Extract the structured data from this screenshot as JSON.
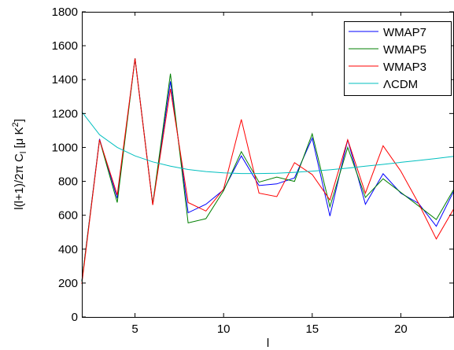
{
  "chart_data": {
    "type": "line",
    "title": "",
    "xlabel": "l",
    "ylabel": "l(l+1)/2π C_l [μ K²]",
    "ylabel_parts": {
      "main": "l(l+1)/2π C",
      "sub": "l",
      "units": " [μ K",
      "sup": "2",
      "close": "]"
    },
    "xlim": [
      2,
      23
    ],
    "ylim": [
      0,
      1800
    ],
    "xticks": [
      5,
      10,
      15,
      20
    ],
    "yticks": [
      0,
      200,
      400,
      600,
      800,
      1000,
      1200,
      1400,
      1600,
      1800
    ],
    "grid": false,
    "legend_position": "top-right",
    "series": [
      {
        "name": "WMAP7",
        "color": "#0000ff",
        "x": [
          2,
          3,
          4,
          5,
          6,
          7,
          8,
          9,
          10,
          11,
          12,
          13,
          14,
          15,
          16,
          17,
          18,
          19,
          20,
          21,
          22,
          23
        ],
        "y": [
          210,
          1050,
          700,
          1525,
          665,
          1390,
          615,
          665,
          750,
          950,
          775,
          785,
          820,
          1055,
          595,
          1045,
          665,
          845,
          730,
          670,
          535,
          745
        ]
      },
      {
        "name": "WMAP5",
        "color": "#007f00",
        "x": [
          2,
          3,
          4,
          5,
          6,
          7,
          8,
          9,
          10,
          11,
          12,
          13,
          14,
          15,
          16,
          17,
          18,
          19,
          20,
          21,
          22,
          23
        ],
        "y": [
          210,
          1045,
          675,
          1525,
          665,
          1435,
          555,
          580,
          745,
          975,
          795,
          825,
          800,
          1080,
          650,
          1000,
          705,
          815,
          735,
          655,
          575,
          755
        ]
      },
      {
        "name": "WMAP3",
        "color": "#ff0000",
        "x": [
          2,
          3,
          4,
          5,
          6,
          7,
          8,
          9,
          10,
          11,
          12,
          13,
          14,
          15,
          16,
          17,
          18,
          19,
          20,
          21,
          22,
          23
        ],
        "y": [
          195,
          1045,
          720,
          1525,
          660,
          1345,
          675,
          625,
          755,
          1165,
          730,
          710,
          910,
          840,
          690,
          1045,
          730,
          1010,
          860,
          670,
          460,
          640
        ]
      },
      {
        "name": "ΛCDM",
        "color": "#00bfbf",
        "x": [
          2,
          3,
          4,
          5,
          6,
          7,
          8,
          9,
          10,
          11,
          12,
          13,
          14,
          15,
          16,
          17,
          18,
          19,
          20,
          21,
          22,
          23
        ],
        "y": [
          1210,
          1075,
          1000,
          950,
          915,
          890,
          870,
          858,
          850,
          846,
          846,
          848,
          853,
          860,
          868,
          878,
          890,
          900,
          912,
          923,
          935,
          948
        ]
      }
    ]
  }
}
